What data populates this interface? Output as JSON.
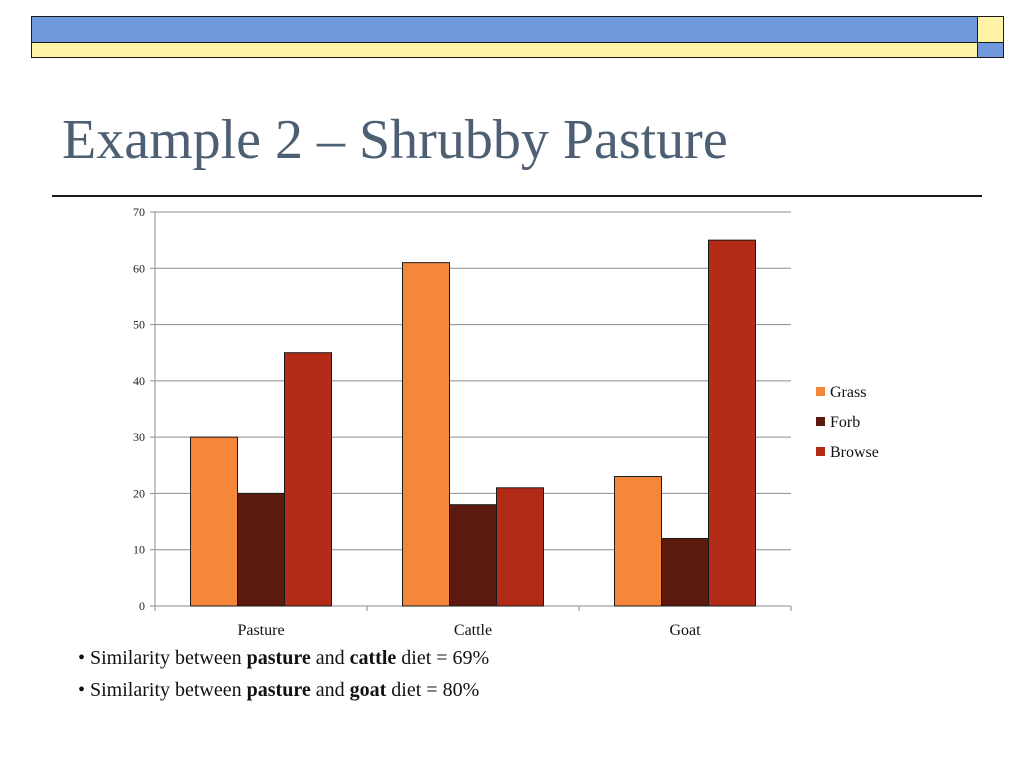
{
  "slide": {
    "title": "Example 2 – Shrubby Pasture"
  },
  "colors": {
    "header_blue": "#7098dc",
    "header_yellow": "#fff3a8",
    "title": "#4d5f73"
  },
  "chart_data": {
    "type": "bar",
    "categories": [
      "Pasture",
      "Cattle",
      "Goat"
    ],
    "series": [
      {
        "name": "Grass",
        "color": "#f4873a",
        "values": [
          30,
          61,
          23
        ]
      },
      {
        "name": "Forb",
        "color": "#5c1a0e",
        "values": [
          20,
          18,
          12
        ]
      },
      {
        "name": "Browse",
        "color": "#b22b17",
        "values": [
          45,
          21,
          65
        ]
      }
    ],
    "ylim": [
      0,
      70
    ],
    "yticks": [
      0,
      10,
      20,
      30,
      40,
      50,
      60,
      70
    ],
    "grid": true,
    "legend": "right",
    "title": "",
    "xlabel": "",
    "ylabel": ""
  },
  "bullets": [
    {
      "prefix": "• Similarity between ",
      "bold1": "pasture",
      "mid": " and ",
      "bold2": "cattle",
      "suffix": " diet = 69%"
    },
    {
      "prefix": "• Similarity between ",
      "bold1": "pasture",
      "mid": " and ",
      "bold2": "goat",
      "suffix": " diet = 80%"
    }
  ]
}
